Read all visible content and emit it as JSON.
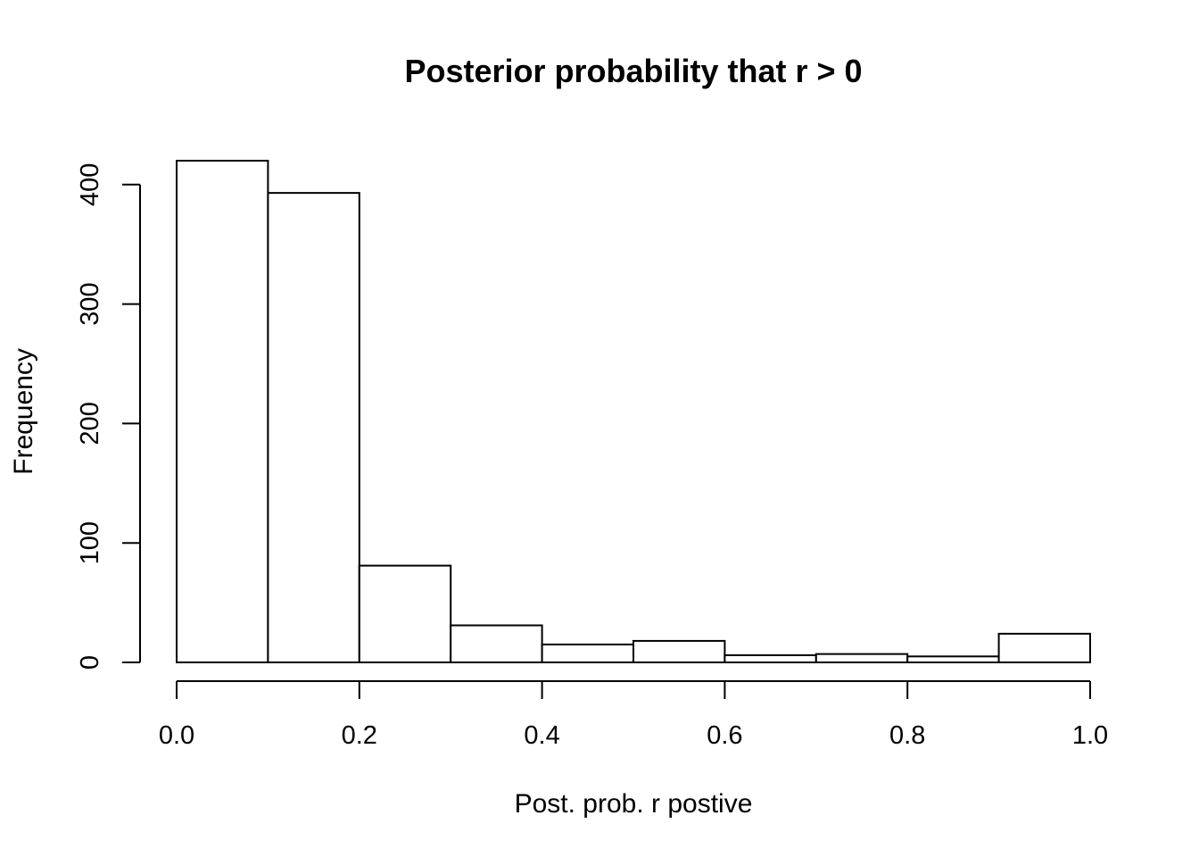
{
  "chart_data": {
    "type": "bar",
    "title": "Posterior probability that r > 0",
    "xlabel": "Post. prob. r postive",
    "ylabel": "Frequency",
    "bins": [
      {
        "from": 0.0,
        "to": 0.1,
        "count": 420
      },
      {
        "from": 0.1,
        "to": 0.2,
        "count": 393
      },
      {
        "from": 0.2,
        "to": 0.3,
        "count": 81
      },
      {
        "from": 0.3,
        "to": 0.4,
        "count": 31
      },
      {
        "from": 0.4,
        "to": 0.5,
        "count": 15
      },
      {
        "from": 0.5,
        "to": 0.6,
        "count": 18
      },
      {
        "from": 0.6,
        "to": 0.7,
        "count": 6
      },
      {
        "from": 0.7,
        "to": 0.8,
        "count": 7
      },
      {
        "from": 0.8,
        "to": 0.9,
        "count": 5
      },
      {
        "from": 0.9,
        "to": 1.0,
        "count": 24
      }
    ],
    "xlim": [
      0,
      1
    ],
    "ylim": [
      0,
      420
    ],
    "x_ticks": [
      "0.0",
      "0.2",
      "0.4",
      "0.6",
      "0.8",
      "1.0"
    ],
    "y_ticks": [
      "0",
      "100",
      "200",
      "300",
      "400"
    ],
    "grid": false,
    "bar_fill": "#ffffff",
    "bar_stroke": "#000000"
  }
}
